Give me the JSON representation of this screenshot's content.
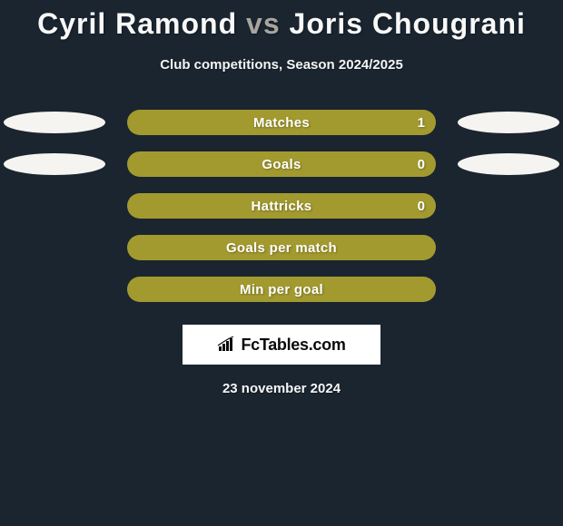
{
  "header": {
    "player1": "Cyril Ramond",
    "vs": "vs",
    "player2": "Joris Chougrani",
    "subtitle": "Club competitions, Season 2024/2025"
  },
  "stats": [
    {
      "label": "Matches",
      "value": "1",
      "bar_color": "#a39a2f",
      "show_left_ellipse": true,
      "show_right_ellipse": true,
      "show_value": true
    },
    {
      "label": "Goals",
      "value": "0",
      "bar_color": "#a39a2f",
      "show_left_ellipse": true,
      "show_right_ellipse": true,
      "show_value": true
    },
    {
      "label": "Hattricks",
      "value": "0",
      "bar_color": "#a39a2f",
      "show_left_ellipse": false,
      "show_right_ellipse": false,
      "show_value": true
    },
    {
      "label": "Goals per match",
      "value": "",
      "bar_color": "#a39a2f",
      "show_left_ellipse": false,
      "show_right_ellipse": false,
      "show_value": false
    },
    {
      "label": "Min per goal",
      "value": "",
      "bar_color": "#a39a2f",
      "show_left_ellipse": false,
      "show_right_ellipse": false,
      "show_value": false
    }
  ],
  "footer": {
    "brand": "FcTables.com",
    "date": "23 november 2024"
  },
  "colors": {
    "background": "#1a2530",
    "bar_fill": "#a39a2f",
    "ellipse": "#f5f4f0",
    "text_light": "#f8f8f8"
  }
}
